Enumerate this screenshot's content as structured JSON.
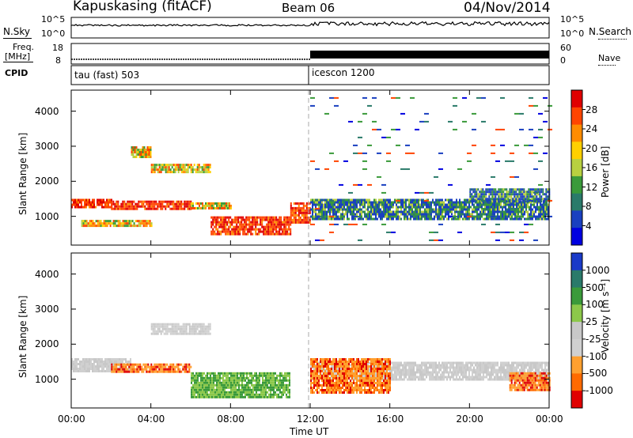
{
  "header": {
    "station": "Kapuskasing (fitACF)",
    "beam": "Beam 06",
    "date": "04/Nov/2014"
  },
  "status_panels": {
    "nsky_label": "N.Sky",
    "nsearch_label": "N.Search",
    "freq_label_1": "Freq.",
    "freq_label_2": "[MHz]",
    "nave_label": "Nave",
    "cpid_label": "CPID",
    "noise_ticks_left": [
      "10^5",
      "10^0"
    ],
    "noise_ticks_right": [
      "10^5",
      "10^0"
    ],
    "freq_ticks": [
      "18",
      "8"
    ],
    "nave_ticks": [
      "60",
      "0"
    ],
    "cpid_1": "tau (fast) 503",
    "cpid_2": "icescon 1200",
    "cpid_switch_hour": 12.0
  },
  "axes": {
    "ylabel": "Slant Range [km]",
    "xlabel": "Time UT",
    "x_ticks": [
      "00:00",
      "04:00",
      "08:00",
      "12:00",
      "16:00",
      "20:00",
      "00:00"
    ],
    "y_ticks": [
      "1000",
      "2000",
      "3000",
      "4000"
    ],
    "y_range": [
      180,
      4600
    ]
  },
  "colorbars": {
    "power": {
      "label": "Power [dB]",
      "ticks": [
        "28",
        "24",
        "20",
        "16",
        "12",
        "8",
        "4"
      ],
      "colors": [
        "#e00000",
        "#ff4500",
        "#ff8c00",
        "#ffd000",
        "#b8d040",
        "#3a9a3a",
        "#2a7a6a",
        "#1a40c0",
        "#0000e0"
      ]
    },
    "velocity": {
      "label": "Velocity [m s⁻¹]",
      "ticks": [
        "1000",
        "500",
        "100",
        "25",
        "-25",
        "-100",
        "-500",
        "-1000"
      ],
      "colors": [
        "#1a3ac8",
        "#2a7a6a",
        "#3a9a3a",
        "#8cc84a",
        "#c8c8c8",
        "#d0d0d0",
        "#ffa030",
        "#ff6a00",
        "#e00000"
      ]
    }
  },
  "chart_data": [
    {
      "type": "heatmap",
      "title": "Power",
      "x_unit": "UT hour",
      "y_unit": "km",
      "regions": [
        {
          "t0": 0.0,
          "t1": 2.0,
          "r0": 1250,
          "r1": 1500,
          "level": "high"
        },
        {
          "t0": 2.0,
          "t1": 6.0,
          "r0": 1200,
          "r1": 1450,
          "level": "high"
        },
        {
          "t0": 6.0,
          "t1": 8.0,
          "r0": 1200,
          "r1": 1400,
          "level": "mid"
        },
        {
          "t0": 7.0,
          "t1": 11.0,
          "r0": 500,
          "r1": 1000,
          "level": "high"
        },
        {
          "t0": 11.0,
          "t1": 12.0,
          "r0": 800,
          "r1": 1400,
          "level": "high"
        },
        {
          "t0": 0.5,
          "t1": 4.0,
          "r0": 700,
          "r1": 900,
          "level": "mid"
        },
        {
          "t0": 4.0,
          "t1": 7.0,
          "r0": 2250,
          "r1": 2500,
          "level": "mid"
        },
        {
          "t0": 3.0,
          "t1": 4.0,
          "r0": 2700,
          "r1": 3000,
          "level": "mid"
        },
        {
          "t0": 12.0,
          "t1": 24.0,
          "r0": 900,
          "r1": 1500,
          "level": "low"
        },
        {
          "t0": 20.0,
          "t1": 24.0,
          "r0": 1400,
          "r1": 1800,
          "level": "low"
        },
        {
          "t0": 12.0,
          "t1": 24.0,
          "r0": 200,
          "r1": 4400,
          "level": "sparse"
        }
      ]
    },
    {
      "type": "heatmap",
      "title": "Velocity",
      "x_unit": "UT hour",
      "y_unit": "km",
      "regions": [
        {
          "t0": 0.0,
          "t1": 3.0,
          "r0": 1250,
          "r1": 1600,
          "level": "ground"
        },
        {
          "t0": 2.0,
          "t1": 6.0,
          "r0": 1200,
          "r1": 1450,
          "level": "negative"
        },
        {
          "t0": 6.0,
          "t1": 11.0,
          "r0": 500,
          "r1": 1200,
          "level": "positive-low"
        },
        {
          "t0": 4.0,
          "t1": 7.0,
          "r0": 2300,
          "r1": 2600,
          "level": "ground"
        },
        {
          "t0": 12.0,
          "t1": 24.0,
          "r0": 1000,
          "r1": 1500,
          "level": "ground"
        },
        {
          "t0": 12.0,
          "t1": 16.0,
          "r0": 600,
          "r1": 1600,
          "level": "negative"
        },
        {
          "t0": 22.0,
          "t1": 24.0,
          "r0": 700,
          "r1": 1200,
          "level": "negative"
        }
      ]
    }
  ]
}
